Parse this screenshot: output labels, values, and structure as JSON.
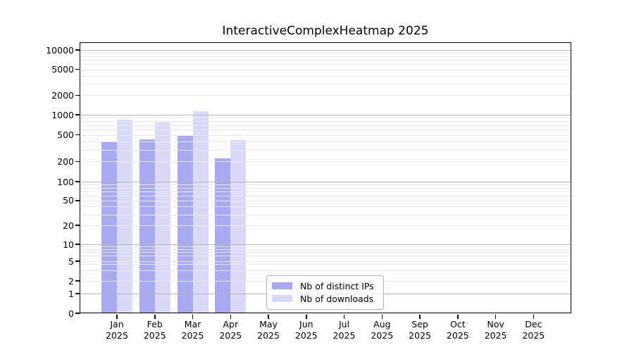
{
  "figure": {
    "title": "InteractiveComplexHeatmap 2025"
  },
  "chart_data": {
    "type": "bar",
    "title": "InteractiveComplexHeatmap 2025",
    "categories": [
      "Jan 2025",
      "Feb 2025",
      "Mar 2025",
      "Apr 2025",
      "May 2025",
      "Jun 2025",
      "Jul 2025",
      "Aug 2025",
      "Sep 2025",
      "Oct 2025",
      "Nov 2025",
      "Dec 2025"
    ],
    "series": [
      {
        "name": "Nb of distinct IPs",
        "color": "#a9a9f1",
        "values": [
          390,
          430,
          480,
          220,
          0,
          0,
          0,
          0,
          0,
          0,
          0,
          0
        ]
      },
      {
        "name": "Nb of downloads",
        "color": "#d9daf8",
        "values": [
          850,
          770,
          1130,
          420,
          0,
          0,
          0,
          0,
          0,
          0,
          0,
          0
        ]
      }
    ],
    "xlabel": "",
    "ylabel": "",
    "yscale": "symlog",
    "y_ticks": [
      0,
      1,
      2,
      5,
      10,
      20,
      50,
      100,
      200,
      500,
      1000,
      2000,
      5000,
      10000
    ],
    "ylim": [
      0,
      13000
    ],
    "grid": "horizontal, major and minor, drawn over bars",
    "legend_position": "lower center inside plot"
  },
  "legend": {
    "items": [
      {
        "label": "Nb of distinct IPs",
        "color": "#a9a9f1"
      },
      {
        "label": "Nb of downloads",
        "color": "#d9daf8"
      }
    ]
  },
  "colors": {
    "background": "#ffffff",
    "major_grid": "#b6b6b6",
    "minor_grid": "#e8e8e8",
    "spine": "#000000",
    "text": "#000000"
  }
}
